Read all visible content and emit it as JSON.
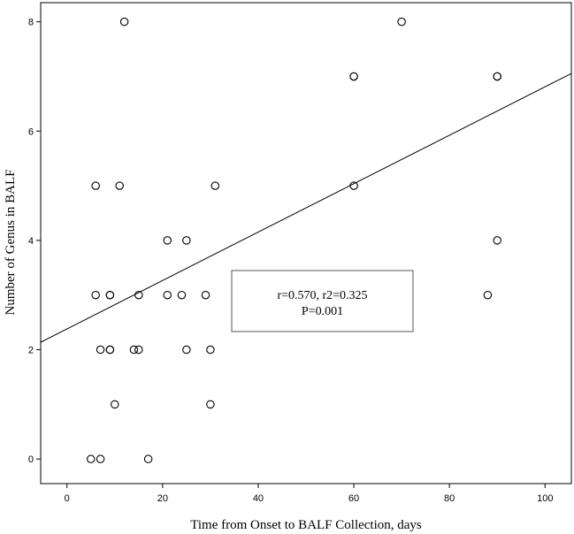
{
  "chart_data": {
    "type": "scatter",
    "xlabel": "Time from Onset to BALF Collection, days",
    "ylabel": "Number of Genus in BALF",
    "xlim": [
      -5.5,
      105.5
    ],
    "ylim": [
      -0.45,
      8.35
    ],
    "xticks": [
      0,
      20,
      40,
      60,
      80,
      100
    ],
    "yticks": [
      0,
      2,
      4,
      6,
      8
    ],
    "grid": false,
    "points": [
      {
        "x": 5,
        "y": 0
      },
      {
        "x": 7,
        "y": 0
      },
      {
        "x": 17,
        "y": 0
      },
      {
        "x": 10,
        "y": 1
      },
      {
        "x": 30,
        "y": 1
      },
      {
        "x": 7,
        "y": 2
      },
      {
        "x": 9,
        "y": 2
      },
      {
        "x": 9,
        "y": 2
      },
      {
        "x": 14,
        "y": 2
      },
      {
        "x": 15,
        "y": 2
      },
      {
        "x": 25,
        "y": 2
      },
      {
        "x": 30,
        "y": 2
      },
      {
        "x": 6,
        "y": 3
      },
      {
        "x": 9,
        "y": 3
      },
      {
        "x": 9,
        "y": 3
      },
      {
        "x": 15,
        "y": 3
      },
      {
        "x": 21,
        "y": 3
      },
      {
        "x": 24,
        "y": 3
      },
      {
        "x": 29,
        "y": 3
      },
      {
        "x": 88,
        "y": 3
      },
      {
        "x": 21,
        "y": 4
      },
      {
        "x": 25,
        "y": 4
      },
      {
        "x": 90,
        "y": 4
      },
      {
        "x": 6,
        "y": 5
      },
      {
        "x": 11,
        "y": 5
      },
      {
        "x": 31,
        "y": 5
      },
      {
        "x": 60,
        "y": 5
      },
      {
        "x": 60,
        "y": 7
      },
      {
        "x": 60,
        "y": 7
      },
      {
        "x": 90,
        "y": 7
      },
      {
        "x": 90,
        "y": 7
      },
      {
        "x": 12,
        "y": 8
      },
      {
        "x": 70,
        "y": 8
      }
    ],
    "fit_line": {
      "intercept": 2.38,
      "slope": 0.0443
    },
    "annotation": {
      "line1": "r=0.570,   r2=0.325",
      "line2": "P=0.001"
    }
  }
}
